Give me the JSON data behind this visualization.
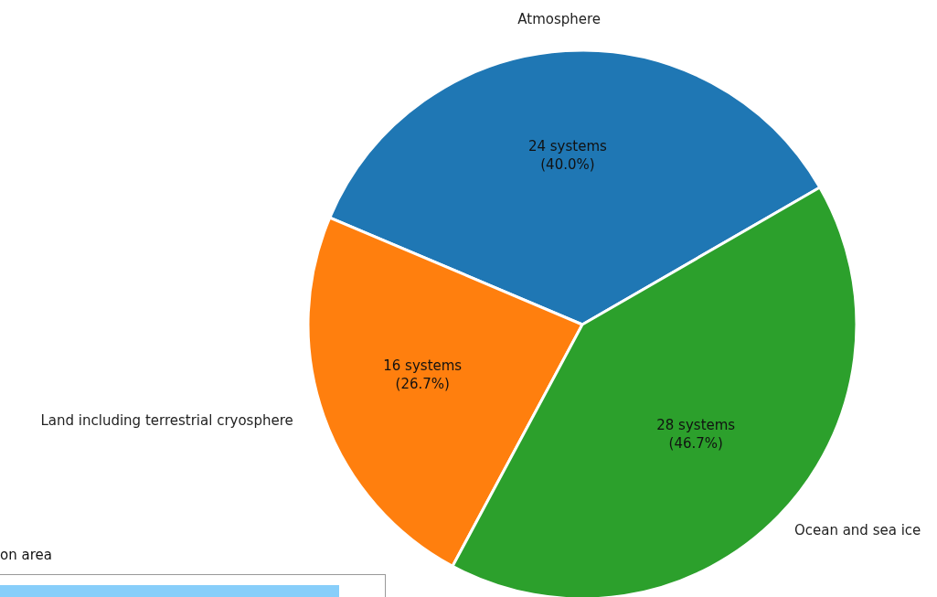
{
  "chart_data": {
    "type": "pie",
    "categories": [
      "Atmosphere",
      "Land including terrestrial cryosphere",
      "Ocean and sea ice"
    ],
    "values": [
      24,
      16,
      28
    ],
    "colors": [
      "#1f77b4",
      "#ff7f0e",
      "#2ca02c"
    ],
    "value_labels": [
      "24 systems\n(40.0%)",
      "16 systems\n(26.7%)",
      "28 systems\n(46.7%)"
    ],
    "annotations": [
      "on area"
    ]
  }
}
